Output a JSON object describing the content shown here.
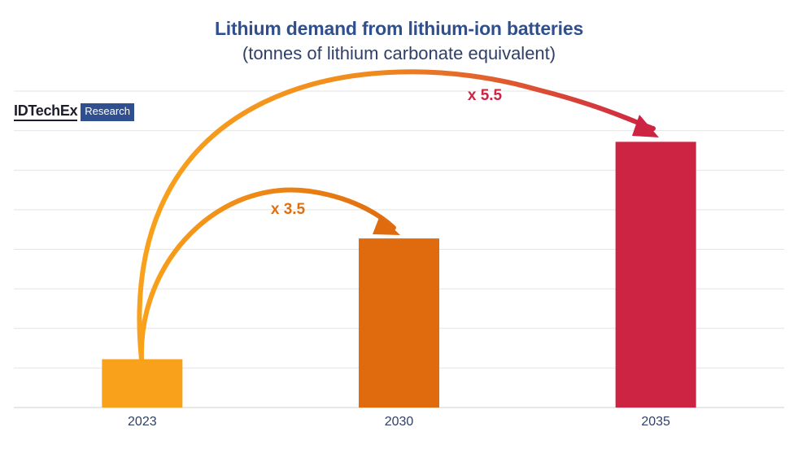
{
  "logo": {
    "wordmark": "IDTechEx",
    "tag": "Research",
    "brand_color": "#2f4f8f"
  },
  "chart_data": {
    "type": "bar",
    "title": "Lithium demand from lithium-ion batteries",
    "subtitle": "(tonnes of lithium carbonate equivalent)",
    "categories": [
      "2023",
      "2030",
      "2035"
    ],
    "values": [
      1,
      3.5,
      5.5
    ],
    "bar_colors": [
      "#f9a11b",
      "#e06b0f",
      "#cd2443"
    ],
    "gridlines": true,
    "y_axis_labels_shown": false,
    "annotations": [
      {
        "text": "x 3.5",
        "from": "2023",
        "to": "2030",
        "color": "#e0700f"
      },
      {
        "text": "x 5.5",
        "from": "2023",
        "to": "2035",
        "color": "#cd2443"
      }
    ]
  }
}
